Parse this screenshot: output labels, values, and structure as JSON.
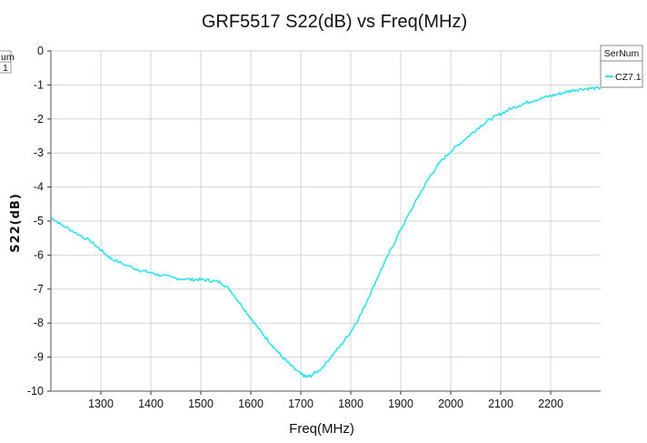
{
  "chart_data": {
    "type": "line",
    "title": "GRF5517 S22(dB) vs Freq(MHz)",
    "xlabel": "Freq(MHz)",
    "ylabel": "S22(dB)",
    "xlim": [
      1200,
      2300
    ],
    "ylim": [
      -10,
      0
    ],
    "x_ticks": [
      1300,
      1400,
      1500,
      1600,
      1700,
      1800,
      1900,
      2000,
      2100,
      2200
    ],
    "y_ticks": [
      0,
      -1,
      -2,
      -3,
      -4,
      -5,
      -6,
      -7,
      -8,
      -9,
      -10
    ],
    "grid": true,
    "legend": {
      "title": "SerNum",
      "position": "top-right"
    },
    "series": [
      {
        "name": "CZ7.1",
        "color": "#33e0ee",
        "x": [
          1200,
          1220,
          1250,
          1280,
          1300,
          1320,
          1350,
          1380,
          1400,
          1420,
          1450,
          1480,
          1500,
          1520,
          1540,
          1560,
          1580,
          1600,
          1620,
          1640,
          1660,
          1680,
          1700,
          1710,
          1720,
          1740,
          1760,
          1780,
          1800,
          1820,
          1840,
          1860,
          1880,
          1900,
          1920,
          1940,
          1960,
          1980,
          2000,
          2020,
          2040,
          2060,
          2080,
          2100,
          2120,
          2140,
          2160,
          2180,
          2200,
          2220,
          2240,
          2260,
          2280,
          2300
        ],
        "y": [
          -4.88,
          -5.1,
          -5.35,
          -5.6,
          -5.85,
          -6.1,
          -6.3,
          -6.45,
          -6.52,
          -6.6,
          -6.68,
          -6.72,
          -6.72,
          -6.75,
          -6.8,
          -7.05,
          -7.45,
          -7.85,
          -8.25,
          -8.6,
          -8.95,
          -9.25,
          -9.5,
          -9.58,
          -9.55,
          -9.35,
          -9.0,
          -8.65,
          -8.25,
          -7.75,
          -7.1,
          -6.45,
          -5.85,
          -5.25,
          -4.7,
          -4.15,
          -3.65,
          -3.25,
          -2.95,
          -2.7,
          -2.45,
          -2.2,
          -2.0,
          -1.85,
          -1.7,
          -1.58,
          -1.48,
          -1.4,
          -1.32,
          -1.25,
          -1.17,
          -1.12,
          -1.1,
          -1.1
        ]
      }
    ],
    "left_cutoff_fragment": [
      "um",
      "1"
    ]
  }
}
